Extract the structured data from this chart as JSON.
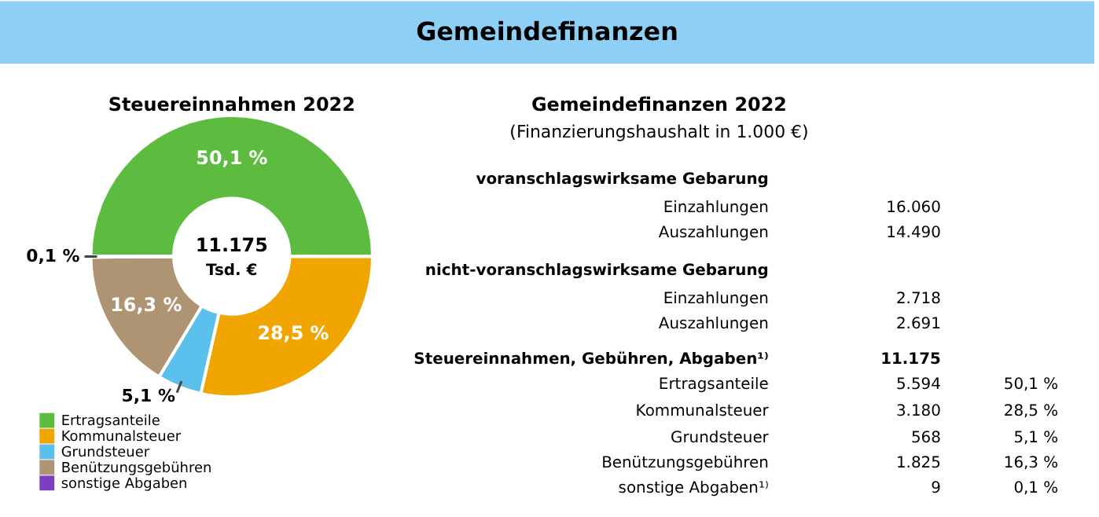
{
  "chart_data": [
    {
      "type": "donut",
      "title": "Steuereinnahmen 2022",
      "categories": [
        "Ertragsanteile",
        "Kommunalsteuer",
        "Grundsteuer",
        "Benützungsgebühren",
        "sonstige Abgaben"
      ],
      "values": [
        50.1,
        28.5,
        5.1,
        16.3,
        0.1
      ],
      "colors": [
        "#5dbb3f",
        "#f0a500",
        "#5bc0eb",
        "#ae9472",
        "#7b3fbf"
      ],
      "value_labels": [
        "50,1 %",
        "28,5 %",
        "5,1 %",
        "16,3 %",
        "0,1 %"
      ],
      "legend": "bottom left",
      "annotations": [
        "Gemeindefinanzen",
        "11.175",
        "Tsd. €"
      ]
    },
    {
      "type": "other",
      "title": "Gemeindefinanzen 2022",
      "subtitle": "(Finanzierungshaushalt in 1.000 €)",
      "annotations": [
        "voranschlagswirksame Gebarung",
        "Einzahlungen",
        "16.060",
        "Auszahlungen",
        "14.490",
        "nicht-voranschlagswirksame Gebarung",
        "Einzahlungen",
        "2.718",
        "Auszahlungen",
        "2.691",
        "Steuereinnahmen, Gebühren, Abgaben¹⁾",
        "11.175",
        "Ertragsanteile",
        "5.594",
        "50,1 %",
        "Kommunalsteuer",
        "3.180",
        "28,5 %",
        "Grundsteuer",
        "568",
        "5,1 %",
        "Benützungsgebühren",
        "1.825",
        "16,3 %",
        "sonstige Abgaben¹⁾",
        "9",
        "0,1 %"
      ]
    }
  ]
}
